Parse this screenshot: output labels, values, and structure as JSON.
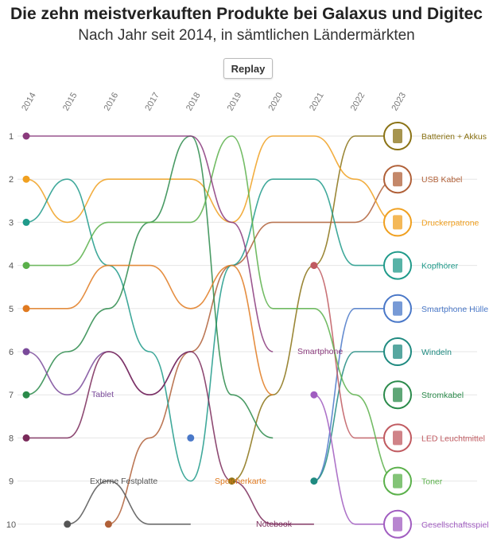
{
  "header": {
    "title": "Die zehn meistverkauften Produkte bei Galaxus und Digitec",
    "subtitle": "Nach Jahr seit 2014, in sämtlichen Ländermärkten",
    "replay_label": "Replay"
  },
  "chart_data": {
    "type": "line",
    "variant": "bump",
    "years": [
      "2014",
      "2015",
      "2016",
      "2017",
      "2018",
      "2019",
      "2020",
      "2021",
      "2022",
      "2023"
    ],
    "ranks": [
      "1",
      "2",
      "3",
      "4",
      "5",
      "6",
      "7",
      "8",
      "9",
      "10"
    ],
    "ylim": [
      1,
      10
    ],
    "series": [
      {
        "name": "Batterien + Akkus",
        "color": "#8a7214",
        "icon": "battery-icon",
        "ranks": [
          null,
          null,
          null,
          null,
          null,
          9,
          7,
          4,
          1,
          1
        ]
      },
      {
        "name": "USB Kabel",
        "color": "#b06038",
        "icon": "usb-cable-icon",
        "ranks": [
          null,
          null,
          10,
          8,
          6,
          4,
          3,
          3,
          3,
          2
        ]
      },
      {
        "name": "Druckerpatrone",
        "color": "#f0a020",
        "icon": "printer-cartridge-icon",
        "ranks": [
          2,
          3,
          2,
          2,
          2,
          3,
          1,
          1,
          2,
          3
        ]
      },
      {
        "name": "Kopfhörer",
        "color": "#1f9a8a",
        "icon": "headphones-icon",
        "ranks": [
          3,
          2,
          4,
          6,
          9,
          4,
          2,
          2,
          4,
          4
        ]
      },
      {
        "name": "Smartphone Hülle",
        "color": "#4a78c8",
        "icon": "phone-case-icon",
        "ranks": [
          null,
          null,
          null,
          null,
          8,
          null,
          null,
          9,
          5,
          5
        ]
      },
      {
        "name": "Windeln",
        "color": "#1f8a80",
        "icon": "diapers-icon",
        "ranks": [
          null,
          null,
          null,
          null,
          null,
          null,
          null,
          9,
          6,
          6
        ]
      },
      {
        "name": "Stromkabel",
        "color": "#2a8a4a",
        "icon": "power-cable-icon",
        "ranks": [
          7,
          6,
          5,
          3,
          1,
          7,
          8,
          null,
          null,
          7
        ]
      },
      {
        "name": "LED Leuchtmittel",
        "color": "#c05a60",
        "icon": "led-lamp-icon",
        "ranks": [
          null,
          null,
          null,
          null,
          null,
          null,
          null,
          4,
          8,
          8
        ]
      },
      {
        "name": "Toner",
        "color": "#5ab04a",
        "icon": "toner-icon",
        "ranks": [
          4,
          4,
          3,
          3,
          3,
          1,
          5,
          5,
          7,
          9
        ]
      },
      {
        "name": "Gesellschaftsspiel",
        "color": "#a05cc0",
        "icon": "board-game-icon",
        "ranks": [
          null,
          null,
          null,
          null,
          null,
          null,
          null,
          7,
          10,
          10
        ]
      },
      {
        "name": "Smartphone",
        "color": "#8a3a7c",
        "icon": "smartphone-icon",
        "ranks": [
          1,
          1,
          1,
          1,
          1,
          3,
          6,
          null,
          null,
          null
        ]
      },
      {
        "name": "Tablet",
        "color": "#7a4a9a",
        "icon": "tablet-icon",
        "ranks": [
          6,
          7,
          6,
          7,
          6,
          null,
          null,
          null,
          null,
          null
        ]
      },
      {
        "name": "Externe Festplatte",
        "color": "#555555",
        "icon": "hard-drive-icon",
        "ranks": [
          null,
          10,
          9,
          10,
          10,
          null,
          null,
          null,
          null,
          null
        ]
      },
      {
        "name": "Speicherkarte",
        "color": "#e07a20",
        "icon": "memory-card-icon",
        "ranks": [
          5,
          5,
          4,
          4,
          5,
          4,
          7,
          null,
          null,
          null
        ]
      },
      {
        "name": "Notebook",
        "color": "#7a2a5a",
        "icon": "notebook-icon",
        "ranks": [
          8,
          8,
          6,
          7,
          6,
          9,
          10,
          10,
          null,
          null
        ]
      }
    ],
    "mid_labels": [
      "Tablet",
      "Externe Festplatte",
      "Speicherkarte",
      "Notebook",
      "Smartphone"
    ],
    "grid": true
  }
}
